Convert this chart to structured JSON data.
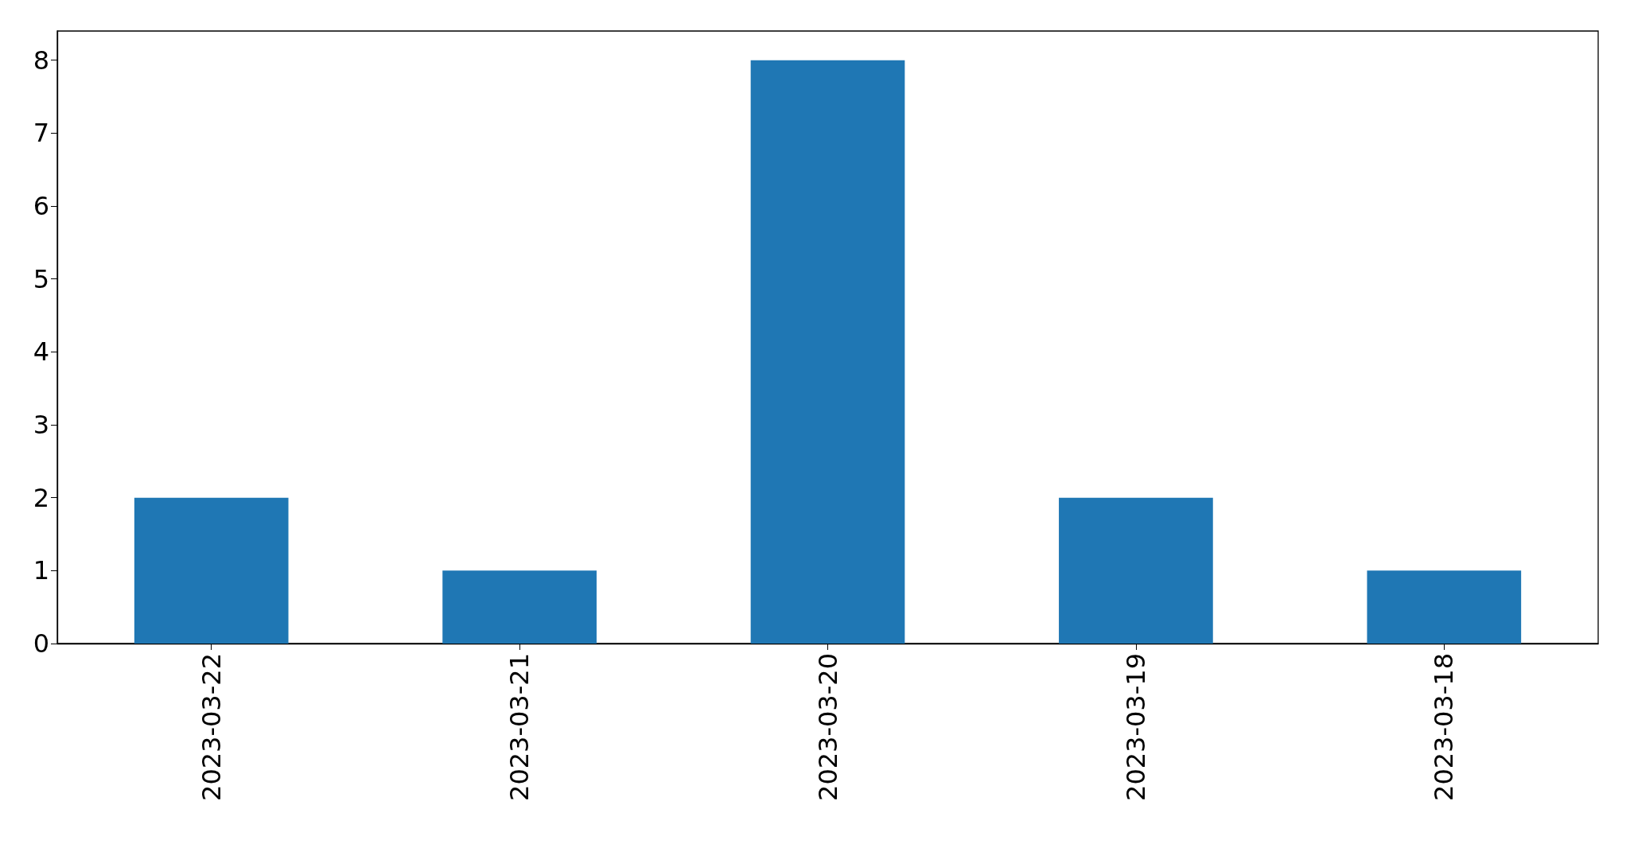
{
  "chart_data": {
    "type": "bar",
    "categories": [
      "2023-03-22",
      "2023-03-21",
      "2023-03-20",
      "2023-03-19",
      "2023-03-18"
    ],
    "values": [
      2,
      1,
      8,
      2,
      1
    ],
    "color": "#1f77b4",
    "ylim": [
      0,
      8.4
    ],
    "yticks": [
      0,
      1,
      2,
      3,
      4,
      5,
      6,
      7,
      8
    ]
  }
}
